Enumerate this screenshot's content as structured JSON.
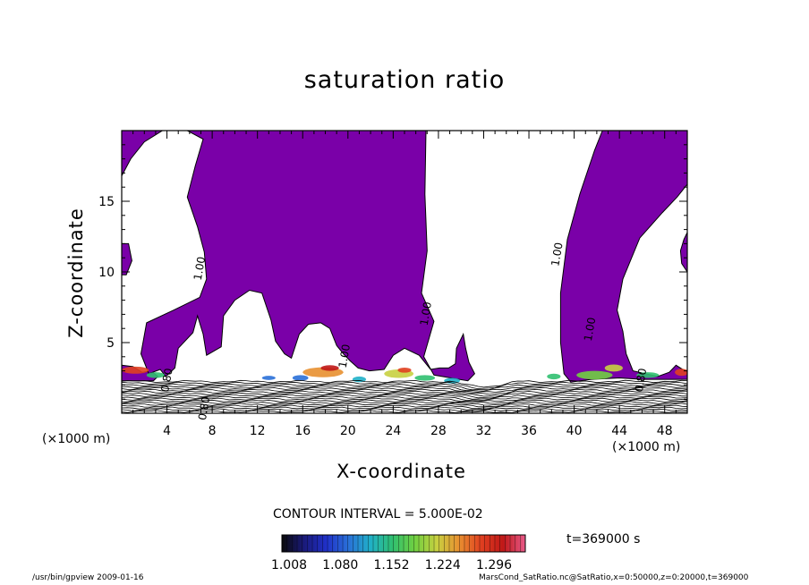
{
  "chart_data": {
    "type": "heatmap",
    "title": "saturation ratio",
    "xlabel": "X-coordinate",
    "ylabel": "Z-coordinate",
    "x_unit": "(×1000 m)",
    "xlim": [
      0,
      50
    ],
    "ylim": [
      0,
      20
    ],
    "x_ticks": [
      4,
      8,
      12,
      16,
      20,
      24,
      28,
      32,
      36,
      40,
      44,
      48
    ],
    "y_ticks": [
      5,
      10,
      15
    ],
    "contour_interval": "CONTOUR INTERVAL = 5.000E-02",
    "contour_labels": [
      {
        "text": "1.00",
        "x": 7.2,
        "z": 10.2
      },
      {
        "text": "1.00",
        "x": 27.2,
        "z": 7.0
      },
      {
        "text": "1.00",
        "x": 38.8,
        "z": 11.2
      },
      {
        "text": "1.00",
        "x": 41.7,
        "z": 5.9
      },
      {
        "text": "1.00",
        "x": 20.0,
        "z": 4.0
      },
      {
        "text": "0.80",
        "x": 7.6,
        "z": 0.3
      },
      {
        "text": "0.80",
        "x": 46.2,
        "z": 2.3
      },
      {
        "text": "0.80",
        "x": 4.3,
        "z": 2.3
      }
    ],
    "colorbar": {
      "ticks": [
        "1.008",
        "1.080",
        "1.152",
        "1.224",
        "1.296"
      ],
      "min": 1.008,
      "max": 1.35,
      "colors": [
        "#0a0a0a",
        "#1a1a7a",
        "#2030c8",
        "#2a70d8",
        "#20b0c8",
        "#30c070",
        "#70d040",
        "#c8d040",
        "#e89030",
        "#e04020",
        "#c01818",
        "#e85a8a"
      ]
    },
    "fill_color": "#7a00a8",
    "time_label": "t=369000 s"
  },
  "footer": {
    "left": "/usr/bin/gpview   2009-01-16",
    "right": "MarsCond_SatRatio.nc@SatRatio,x=0:50000,z=0:20000,t=369000"
  }
}
